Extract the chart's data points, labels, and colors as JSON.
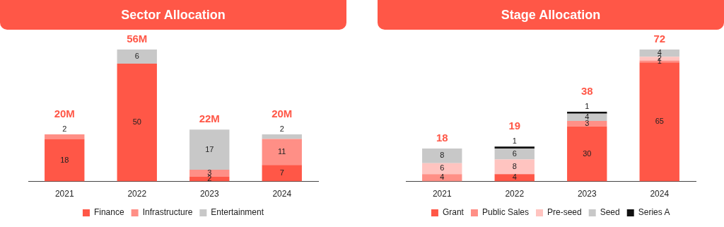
{
  "chart_data": [
    {
      "type": "bar",
      "title": "Sector Allocation",
      "categories": [
        "2021",
        "2022",
        "2023",
        "2024"
      ],
      "stacked": true,
      "data_labels": true,
      "grid": false,
      "legend": "bottom",
      "totals": [
        "20M",
        "56M",
        "22M",
        "20M"
      ],
      "series": [
        {
          "name": "Finance",
          "color": "#ff5747",
          "values": [
            18,
            50,
            2,
            7
          ]
        },
        {
          "name": "Infrastructure",
          "color": "#ff8f86",
          "values": [
            2,
            null,
            3,
            11
          ]
        },
        {
          "name": "Entertainment",
          "color": "#c8c8c8",
          "values": [
            null,
            6,
            17,
            2
          ]
        }
      ]
    },
    {
      "type": "bar",
      "title": "Stage Allocation",
      "categories": [
        "2021",
        "2022",
        "2023",
        "2024"
      ],
      "stacked": true,
      "data_labels": true,
      "grid": false,
      "legend": "bottom",
      "totals": [
        "18",
        "19",
        "38",
        "72"
      ],
      "series": [
        {
          "name": "Grant",
          "color": "#ff5747",
          "values": [
            null,
            4,
            30,
            65
          ]
        },
        {
          "name": "Public Sales",
          "color": "#ff8f86",
          "values": [
            4,
            null,
            3,
            1
          ]
        },
        {
          "name": "Pre-seed",
          "color": "#ffc4c0",
          "values": [
            6,
            8,
            null,
            2
          ]
        },
        {
          "name": "Seed",
          "color": "#c8c8c8",
          "values": [
            8,
            6,
            4,
            4
          ]
        },
        {
          "name": "Series A",
          "color": "#111111",
          "values": [
            null,
            1,
            1,
            null
          ]
        }
      ]
    }
  ]
}
